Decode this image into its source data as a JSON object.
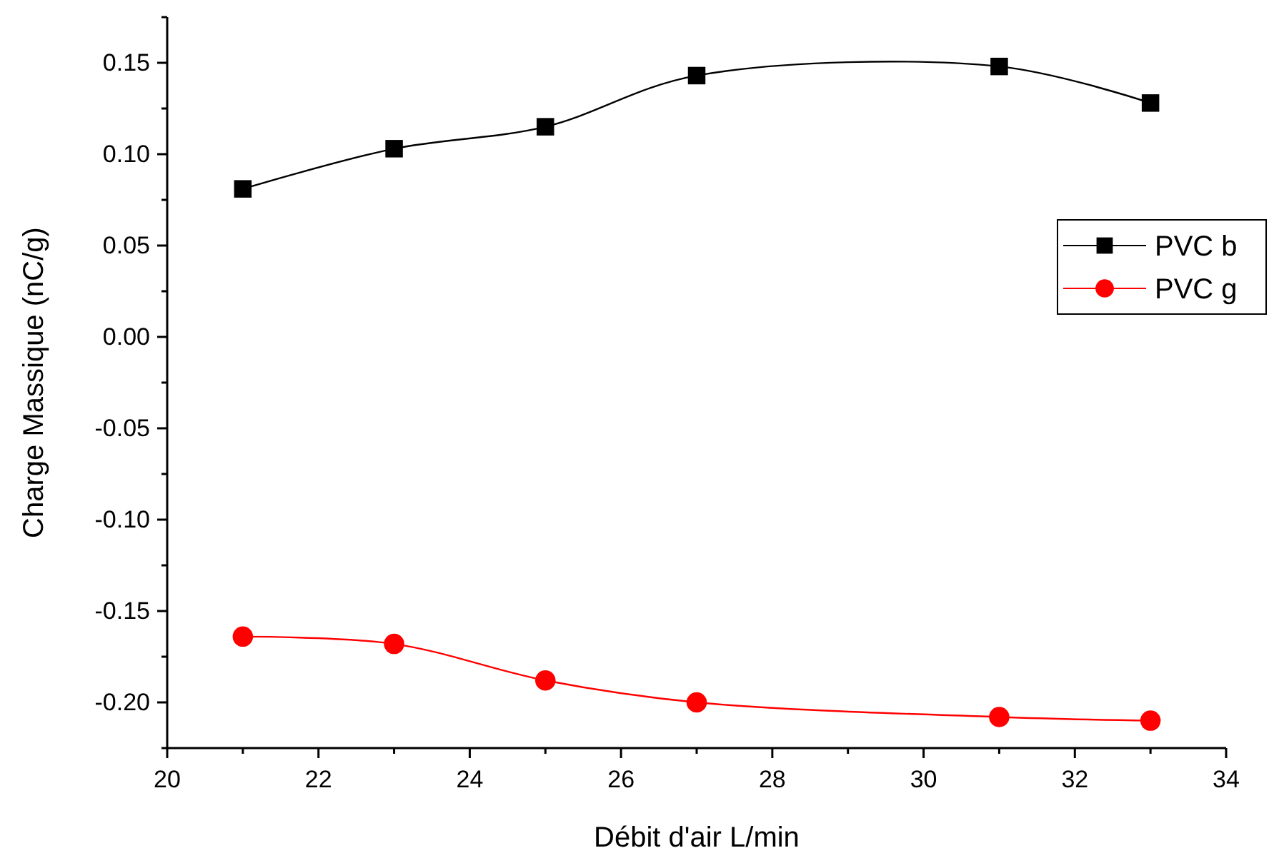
{
  "chart_data": {
    "type": "line",
    "xlabel": "Débit d'air L/min",
    "ylabel": "Charge Massique (nC/g)",
    "x": [
      21,
      23,
      25,
      27,
      31,
      33
    ],
    "series": [
      {
        "name": "PVC b",
        "color": "#000000",
        "marker": "square",
        "values": [
          0.081,
          0.103,
          0.115,
          0.143,
          0.148,
          0.128
        ]
      },
      {
        "name": "PVC g",
        "color": "#ff0000",
        "marker": "circle",
        "values": [
          -0.164,
          -0.168,
          -0.188,
          -0.2,
          -0.208,
          -0.21
        ]
      }
    ],
    "xlim": [
      20,
      34
    ],
    "xticks": [
      20,
      {
        "value": 21,
        "label": null
      },
      22,
      {
        "value": 23,
        "label": null
      },
      24,
      {
        "value": 25,
        "label": null
      },
      26,
      {
        "value": 27,
        "label": null
      },
      28,
      {
        "value": 29,
        "label": null
      },
      30,
      {
        "value": 31,
        "label": null
      },
      32,
      {
        "value": 33,
        "label": null
      },
      34
    ],
    "ylim": [
      -0.225,
      0.175
    ],
    "yticks": [
      {
        "value": -0.225,
        "label": null
      },
      {
        "value": -0.2,
        "label": "-0.20"
      },
      {
        "value": -0.175,
        "label": null
      },
      {
        "value": -0.15,
        "label": "-0.15"
      },
      {
        "value": -0.125,
        "label": null
      },
      {
        "value": -0.1,
        "label": "-0.10"
      },
      {
        "value": -0.075,
        "label": null
      },
      {
        "value": -0.05,
        "label": "-0.05"
      },
      {
        "value": -0.025,
        "label": null
      },
      {
        "value": 0,
        "label": "0.00"
      },
      {
        "value": 0.025,
        "label": null
      },
      {
        "value": 0.05,
        "label": "0.05"
      },
      {
        "value": 0.075,
        "label": null
      },
      {
        "value": 0.1,
        "label": "0.10"
      },
      {
        "value": 0.125,
        "label": null
      },
      {
        "value": 0.15,
        "label": "0.15"
      },
      {
        "value": 0.175,
        "label": null
      }
    ],
    "grid": false,
    "legend": "right"
  }
}
